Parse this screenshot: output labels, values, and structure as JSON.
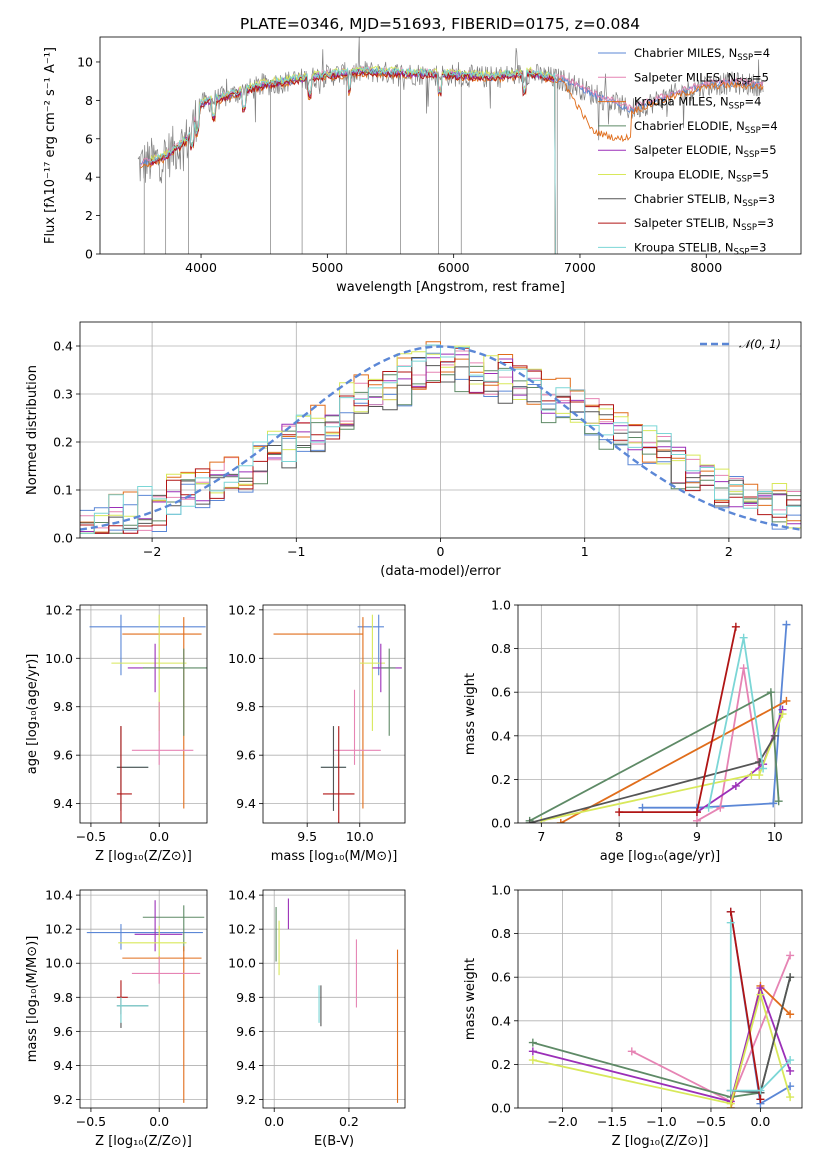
{
  "title": "PLATE=0346, MJD=51693, FIBERID=0175, z=0.084",
  "colors": {
    "Chabrier MILES": "#5b87d6",
    "Salpeter MILES": "#e684b4",
    "Kroupa MILES": "#e06d1b",
    "Chabrier ELODIE": "#5e8a66",
    "Salpeter ELODIE": "#9b2fb8",
    "Kroupa ELODIE": "#d8e85a",
    "Chabrier STELIB": "#555555",
    "Salpeter STELIB": "#b01515",
    "Kroupa STELIB": "#7bd6d6",
    "normal": "#5b87d6"
  },
  "chart_data": [
    {
      "id": "spectrum",
      "type": "line",
      "title": "PLATE=0346, MJD=51693, FIBERID=0175, z=0.084",
      "xlabel": "wavelength [Angstrom, rest frame]",
      "ylabel": "Flux [fλ10⁻¹⁷ erg cm⁻² s⁻¹ A⁻¹]",
      "xlim": [
        3200,
        8750
      ],
      "ylim": [
        0,
        11.3
      ],
      "xticks": [
        4000,
        5000,
        6000,
        7000,
        8000
      ],
      "yticks": [
        0,
        2,
        4,
        6,
        8,
        10
      ],
      "legend_position": "top-right",
      "legend": [
        {
          "label": "Chabrier MILES, N",
          "sub": "SSP",
          "suffix": "=4"
        },
        {
          "label": "Salpeter MILES, N",
          "sub": "SSP",
          "suffix": "=5"
        },
        {
          "label": "Kroupa MILES, N",
          "sub": "SSP",
          "suffix": "=4"
        },
        {
          "label": "Chabrier ELODIE, N",
          "sub": "SSP",
          "suffix": "=4"
        },
        {
          "label": "Salpeter ELODIE, N",
          "sub": "SSP",
          "suffix": "=5"
        },
        {
          "label": "Kroupa ELODIE, N",
          "sub": "SSP",
          "suffix": "=5"
        },
        {
          "label": "Chabrier STELIB, N",
          "sub": "SSP",
          "suffix": "=3"
        },
        {
          "label": "Salpeter STELIB, N",
          "sub": "SSP",
          "suffix": "=3"
        },
        {
          "label": "Kroupa STELIB, N",
          "sub": "SSP",
          "suffix": "=3"
        }
      ],
      "continuum": {
        "wavelength": [
          3500,
          3700,
          3900,
          4000,
          4300,
          4500,
          4800,
          5000,
          5300,
          5600,
          6000,
          6300,
          6600,
          6900,
          7100,
          7400,
          7700,
          8000,
          8200,
          8450
        ],
        "flux": [
          4.6,
          5.0,
          6.0,
          7.8,
          8.4,
          8.8,
          9.1,
          9.3,
          9.5,
          9.4,
          9.3,
          9.2,
          9.4,
          9.0,
          8.3,
          7.5,
          8.2,
          8.8,
          8.9,
          8.8
        ]
      },
      "model_offsets": {
        "Chabrier MILES": 0.0,
        "Salpeter MILES": 0.1,
        "Kroupa MILES": -0.1,
        "Chabrier ELODIE": 0.05,
        "Salpeter ELODIE": 0.0,
        "Kroupa ELODIE": 0.15,
        "Salpeter STELIB": -0.05,
        "Kroupa STELIB": 0.1
      },
      "kroupa_miles_drop": {
        "wavelength": [
          6900,
          7000,
          7100,
          7200,
          7300,
          7400
        ],
        "flux": [
          8.6,
          7.5,
          6.4,
          6.2,
          6.0,
          6.1
        ]
      },
      "elodie_stelib_end": 6800
    },
    {
      "id": "residuals",
      "type": "step",
      "xlabel": "(data-model)/error",
      "ylabel": "Normed distribution",
      "xlim": [
        -2.5,
        2.5
      ],
      "ylim": [
        0,
        0.45
      ],
      "xticks": [
        -2,
        -1,
        0,
        1,
        2
      ],
      "yticks": [
        0.0,
        0.1,
        0.2,
        0.3,
        0.4
      ],
      "legend": "𝒩(0, 1)",
      "legend_position": "top-right",
      "normal": {
        "mean": 0,
        "sigma": 1
      },
      "bin_width": 0.1,
      "base_shape": {
        "x": [
          -2.5,
          -2.0,
          -1.5,
          -1.0,
          -0.5,
          0.0,
          0.5,
          1.0,
          1.5,
          2.0,
          2.5
        ],
        "y": [
          0.03,
          0.06,
          0.12,
          0.2,
          0.3,
          0.36,
          0.33,
          0.26,
          0.18,
          0.1,
          0.05
        ]
      }
    },
    {
      "id": "age-vs-Z",
      "type": "errorbar",
      "xlabel": "Z [log₁₀(Z/Z⊙)]",
      "ylabel": "age  [log₁₀(age/yr)]",
      "xlim": [
        -0.58,
        0.35
      ],
      "ylim": [
        9.32,
        10.22
      ],
      "xticks": [
        -0.5,
        0.0
      ],
      "yticks": [
        9.4,
        9.6,
        9.8,
        10.0,
        10.2
      ],
      "points": [
        {
          "model": "Chabrier MILES",
          "x": -0.28,
          "y": 10.13,
          "xerr": [
            0.23,
            0.62
          ],
          "yerr": [
            0.2,
            0.05
          ]
        },
        {
          "model": "Kroupa MILES",
          "x": 0.18,
          "y": 10.1,
          "xerr": [
            0.45,
            0.13
          ],
          "yerr": [
            0.72,
            0.07
          ]
        },
        {
          "model": "Kroupa ELODIE",
          "x": 0.0,
          "y": 9.98,
          "xerr": [
            0.35,
            0.2
          ],
          "yerr": [
            0.28,
            0.2
          ]
        },
        {
          "model": "Salpeter ELODIE",
          "x": -0.03,
          "y": 9.96,
          "xerr": [
            0.2,
            0.2
          ],
          "yerr": [
            0.1,
            0.1
          ]
        },
        {
          "model": "Chabrier ELODIE",
          "x": 0.18,
          "y": 9.96,
          "xerr": [
            0.3,
            0.2
          ],
          "yerr": [
            0.28,
            0.08
          ]
        },
        {
          "model": "Salpeter MILES",
          "x": 0.0,
          "y": 9.62,
          "xerr": [
            0.2,
            0.25
          ],
          "yerr": [
            0.06,
            0.2
          ]
        },
        {
          "model": "Kroupa STELIB",
          "x": -0.28,
          "y": 9.55,
          "xerr": [
            0.03,
            0.2
          ],
          "yerr": [
            0.18,
            0.17
          ]
        },
        {
          "model": "Chabrier STELIB",
          "x": -0.28,
          "y": 9.55,
          "xerr": [
            0.03,
            0.2
          ],
          "yerr": [
            0.18,
            0.17
          ]
        },
        {
          "model": "Salpeter STELIB",
          "x": -0.28,
          "y": 9.44,
          "xerr": [
            0.03,
            0.08
          ],
          "yerr": [
            0.2,
            0.28
          ]
        }
      ]
    },
    {
      "id": "age-vs-mass",
      "type": "errorbar",
      "xlabel": "mass [log₁₀(M/M⊙)]",
      "ylabel": "",
      "xlim": [
        9.08,
        10.43
      ],
      "ylim": [
        9.32,
        10.22
      ],
      "xticks": [
        9.5,
        10.0
      ],
      "yticks": [
        9.4,
        9.6,
        9.8,
        10.0,
        10.2
      ],
      "points": [
        {
          "model": "Chabrier MILES",
          "x": 10.18,
          "y": 10.13,
          "xerr": [
            0.2,
            0.05
          ],
          "yerr": [
            0.2,
            0.05
          ]
        },
        {
          "model": "Kroupa MILES",
          "x": 10.03,
          "y": 10.1,
          "xerr": [
            0.85,
            0.0
          ],
          "yerr": [
            0.72,
            0.07
          ]
        },
        {
          "model": "Kroupa ELODIE",
          "x": 10.12,
          "y": 9.98,
          "xerr": [
            0.12,
            0.12
          ],
          "yerr": [
            0.28,
            0.2
          ]
        },
        {
          "model": "Salpeter ELODIE",
          "x": 10.2,
          "y": 9.96,
          "xerr": [
            0.08,
            0.2
          ],
          "yerr": [
            0.1,
            0.1
          ]
        },
        {
          "model": "Chabrier ELODIE",
          "x": 10.28,
          "y": 9.96,
          "xerr": [
            0.08,
            0.06
          ],
          "yerr": [
            0.28,
            0.08
          ]
        },
        {
          "model": "Salpeter MILES",
          "x": 9.95,
          "y": 9.62,
          "xerr": [
            0.2,
            0.25
          ],
          "yerr": [
            0.06,
            0.25
          ]
        },
        {
          "model": "Kroupa STELIB",
          "x": 9.75,
          "y": 9.55,
          "xerr": [
            0.12,
            0.12
          ],
          "yerr": [
            0.18,
            0.17
          ]
        },
        {
          "model": "Chabrier STELIB",
          "x": 9.75,
          "y": 9.55,
          "xerr": [
            0.12,
            0.12
          ],
          "yerr": [
            0.18,
            0.17
          ]
        },
        {
          "model": "Salpeter STELIB",
          "x": 9.8,
          "y": 9.44,
          "xerr": [
            0.15,
            0.15
          ],
          "yerr": [
            0.2,
            0.28
          ]
        }
      ]
    },
    {
      "id": "mass-weight-vs-age",
      "type": "line",
      "xlabel": "age  [log₁₀(age/yr)]",
      "ylabel": "mass weight",
      "xlim": [
        6.7,
        10.35
      ],
      "ylim": [
        0,
        1
      ],
      "xticks": [
        7,
        8,
        9,
        10
      ],
      "yticks": [
        0.0,
        0.2,
        0.4,
        0.6,
        0.8,
        1.0
      ],
      "series": [
        {
          "model": "Chabrier MILES",
          "x": [
            8.3,
            9.0,
            9.98,
            10.15
          ],
          "y": [
            0.07,
            0.07,
            0.09,
            0.91
          ]
        },
        {
          "model": "Salpeter MILES",
          "x": [
            9.0,
            9.3,
            9.6,
            9.8
          ],
          "y": [
            0.01,
            0.07,
            0.71,
            0.25
          ]
        },
        {
          "model": "Kroupa MILES",
          "x": [
            7.25,
            10.15
          ],
          "y": [
            0.0,
            0.56
          ]
        },
        {
          "model": "Chabrier ELODIE",
          "x": [
            6.85,
            9.95,
            10.05
          ],
          "y": [
            0.01,
            0.6,
            0.1
          ]
        },
        {
          "model": "Salpeter ELODIE",
          "x": [
            9.0,
            9.5,
            9.85,
            10.1
          ],
          "y": [
            0.05,
            0.17,
            0.27,
            0.52
          ]
        },
        {
          "model": "Kroupa ELODIE",
          "x": [
            7.0,
            9.7,
            9.8,
            10.1
          ],
          "y": [
            0.01,
            0.22,
            0.22,
            0.5
          ]
        },
        {
          "model": "Chabrier STELIB",
          "x": [
            6.85,
            9.8,
            10.0
          ],
          "y": [
            0.0,
            0.28,
            0.4
          ]
        },
        {
          "model": "Salpeter STELIB",
          "x": [
            8.0,
            9.0,
            9.5
          ],
          "y": [
            0.05,
            0.05,
            0.9
          ]
        },
        {
          "model": "Kroupa STELIB",
          "x": [
            9.15,
            9.6,
            9.85
          ],
          "y": [
            0.07,
            0.85,
            0.25
          ]
        }
      ]
    },
    {
      "id": "mass-vs-Z",
      "type": "errorbar",
      "xlabel": "Z [log₁₀(Z/Z⊙)]",
      "ylabel": "mass [log₁₀(M/M⊙)]",
      "xlim": [
        -0.58,
        0.35
      ],
      "ylim": [
        9.15,
        10.43
      ],
      "xticks": [
        -0.5,
        0.0
      ],
      "yticks": [
        9.2,
        9.4,
        9.6,
        9.8,
        10.0,
        10.2,
        10.4
      ],
      "points": [
        {
          "model": "Chabrier MILES",
          "x": -0.28,
          "y": 10.18,
          "xerr": [
            0.25,
            0.6
          ],
          "yerr": [
            0.1,
            0.05
          ]
        },
        {
          "model": "Chabrier ELODIE",
          "x": 0.18,
          "y": 10.27,
          "xerr": [
            0.3,
            0.15
          ],
          "yerr": [
            0.2,
            0.07
          ]
        },
        {
          "model": "Salpeter ELODIE",
          "x": -0.03,
          "y": 10.17,
          "xerr": [
            0.15,
            0.2
          ],
          "yerr": [
            0.1,
            0.2
          ]
        },
        {
          "model": "Kroupa ELODIE",
          "x": 0.0,
          "y": 10.12,
          "xerr": [
            0.3,
            0.2
          ],
          "yerr": [
            0.1,
            0.1
          ]
        },
        {
          "model": "Kroupa MILES",
          "x": 0.18,
          "y": 10.03,
          "xerr": [
            0.45,
            0.13
          ],
          "yerr": [
            0.85,
            0.07
          ]
        },
        {
          "model": "Salpeter MILES",
          "x": 0.0,
          "y": 9.94,
          "xerr": [
            0.2,
            0.3
          ],
          "yerr": [
            0.06,
            0.1
          ]
        },
        {
          "model": "Salpeter STELIB",
          "x": -0.28,
          "y": 9.8,
          "xerr": [
            0.03,
            0.05
          ],
          "yerr": [
            0.1,
            0.1
          ]
        },
        {
          "model": "Chabrier STELIB",
          "x": -0.28,
          "y": 9.75,
          "xerr": [
            0.03,
            0.2
          ],
          "yerr": [
            0.13,
            0.05
          ]
        },
        {
          "model": "Kroupa STELIB",
          "x": -0.28,
          "y": 9.75,
          "xerr": [
            0.03,
            0.2
          ],
          "yerr": [
            0.1,
            0.05
          ]
        }
      ]
    },
    {
      "id": "mass-vs-EBV",
      "type": "errorbar",
      "xlabel": "E(B-V)",
      "ylabel": "",
      "xlim": [
        -0.03,
        0.35
      ],
      "ylim": [
        9.15,
        10.43
      ],
      "xticks": [
        0.0,
        0.2
      ],
      "yticks": [
        9.2,
        9.4,
        9.6,
        9.8,
        10.0,
        10.2,
        10.4
      ],
      "points": [
        {
          "model": "Chabrier ELODIE",
          "x": 0.005,
          "y": 10.16,
          "xerr": [
            0,
            0
          ],
          "yerr": [
            0.15,
            0.17
          ]
        },
        {
          "model": "Kroupa ELODIE",
          "x": 0.013,
          "y": 10.1,
          "xerr": [
            0,
            0
          ],
          "yerr": [
            0.17,
            0.15
          ]
        },
        {
          "model": "Salpeter ELODIE",
          "x": 0.038,
          "y": 10.28,
          "xerr": [
            0,
            0
          ],
          "yerr": [
            0.08,
            0.1
          ]
        },
        {
          "model": "Kroupa STELIB",
          "x": 0.12,
          "y": 9.75,
          "xerr": [
            0,
            0
          ],
          "yerr": [
            0.1,
            0.12
          ]
        },
        {
          "model": "Chabrier STELIB",
          "x": 0.125,
          "y": 9.75,
          "xerr": [
            0,
            0
          ],
          "yerr": [
            0.12,
            0.12
          ]
        },
        {
          "model": "Salpeter MILES",
          "x": 0.22,
          "y": 9.94,
          "xerr": [
            0,
            0
          ],
          "yerr": [
            0.2,
            0.2
          ]
        },
        {
          "model": "Kroupa MILES",
          "x": 0.33,
          "y": 9.6,
          "xerr": [
            0,
            0
          ],
          "yerr": [
            0.42,
            0.48
          ]
        }
      ]
    },
    {
      "id": "mass-weight-vs-Z",
      "type": "line",
      "xlabel": "Z [log₁₀(Z/Z⊙)]",
      "ylabel": "mass weight",
      "xlim": [
        -2.45,
        0.42
      ],
      "ylim": [
        0,
        1
      ],
      "xticks": [
        -2.0,
        -1.5,
        -1.0,
        -0.5,
        0.0
      ],
      "yticks": [
        0.0,
        0.2,
        0.4,
        0.6,
        0.8,
        1.0
      ],
      "series": [
        {
          "model": "Chabrier MILES",
          "x": [
            -0.3,
            0.0,
            0.3
          ],
          "y": [
            0.9,
            0.02,
            0.1
          ]
        },
        {
          "model": "Salpeter MILES",
          "x": [
            -1.3,
            -0.3,
            0.3
          ],
          "y": [
            0.26,
            0.03,
            0.7
          ]
        },
        {
          "model": "Kroupa MILES",
          "x": [
            -0.3,
            0.0,
            0.3
          ],
          "y": [
            0.0,
            0.56,
            0.43
          ]
        },
        {
          "model": "Chabrier ELODIE",
          "x": [
            -2.3,
            -0.3,
            0.0,
            0.3
          ],
          "y": [
            0.3,
            0.05,
            0.07,
            0.6
          ]
        },
        {
          "model": "Salpeter ELODIE",
          "x": [
            -2.3,
            -0.3,
            0.0,
            0.3
          ],
          "y": [
            0.26,
            0.03,
            0.55,
            0.17
          ]
        },
        {
          "model": "Kroupa ELODIE",
          "x": [
            -2.3,
            -0.3,
            0.0,
            0.3
          ],
          "y": [
            0.22,
            0.02,
            0.52,
            0.05
          ]
        },
        {
          "model": "Chabrier STELIB",
          "x": [
            -0.3,
            0.0,
            0.3
          ],
          "y": [
            0.08,
            0.07,
            0.6
          ]
        },
        {
          "model": "Salpeter STELIB",
          "x": [
            -0.3,
            0.0
          ],
          "y": [
            0.9,
            0.04
          ]
        },
        {
          "model": "Kroupa STELIB",
          "x": [
            -0.3,
            -0.3,
            0.0,
            0.3
          ],
          "y": [
            0.85,
            0.08,
            0.08,
            0.22
          ]
        }
      ]
    }
  ]
}
